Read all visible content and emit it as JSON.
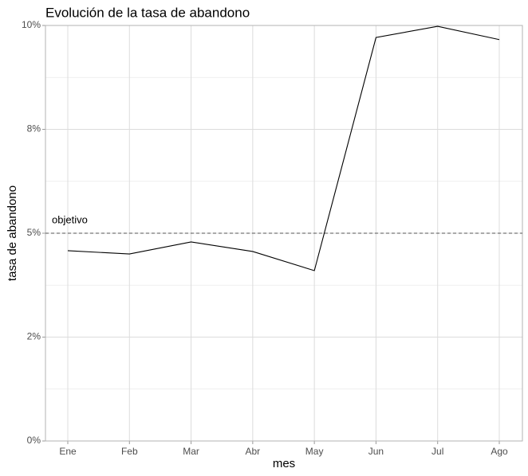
{
  "chart_data": {
    "type": "line",
    "title": "Evolución de la tasa de abandono",
    "x_label": "mes",
    "y_label": "tasa de abandono",
    "categories": [
      "Ene",
      "Feb",
      "Mar",
      "Abr",
      "May",
      "Jun",
      "Jul",
      "Ago"
    ],
    "series": [
      {
        "color": "#000000",
        "values": [
          4.58,
          4.5,
          4.79,
          4.56,
          4.1,
          9.71,
          9.98,
          9.66
        ]
      }
    ],
    "ylim": [
      0,
      10
    ],
    "yticks": [
      {
        "value": 0,
        "label": "0%"
      },
      {
        "value": 2.5,
        "label": "2%"
      },
      {
        "value": 5,
        "label": "5%"
      },
      {
        "value": 7.5,
        "label": "8%"
      },
      {
        "value": 10,
        "label": "10%"
      }
    ],
    "yminorticks": [
      1.25,
      3.75,
      6.25,
      8.75
    ],
    "grid": true,
    "target": {
      "value": 5,
      "label": "objetivo",
      "color": "#555555"
    }
  }
}
